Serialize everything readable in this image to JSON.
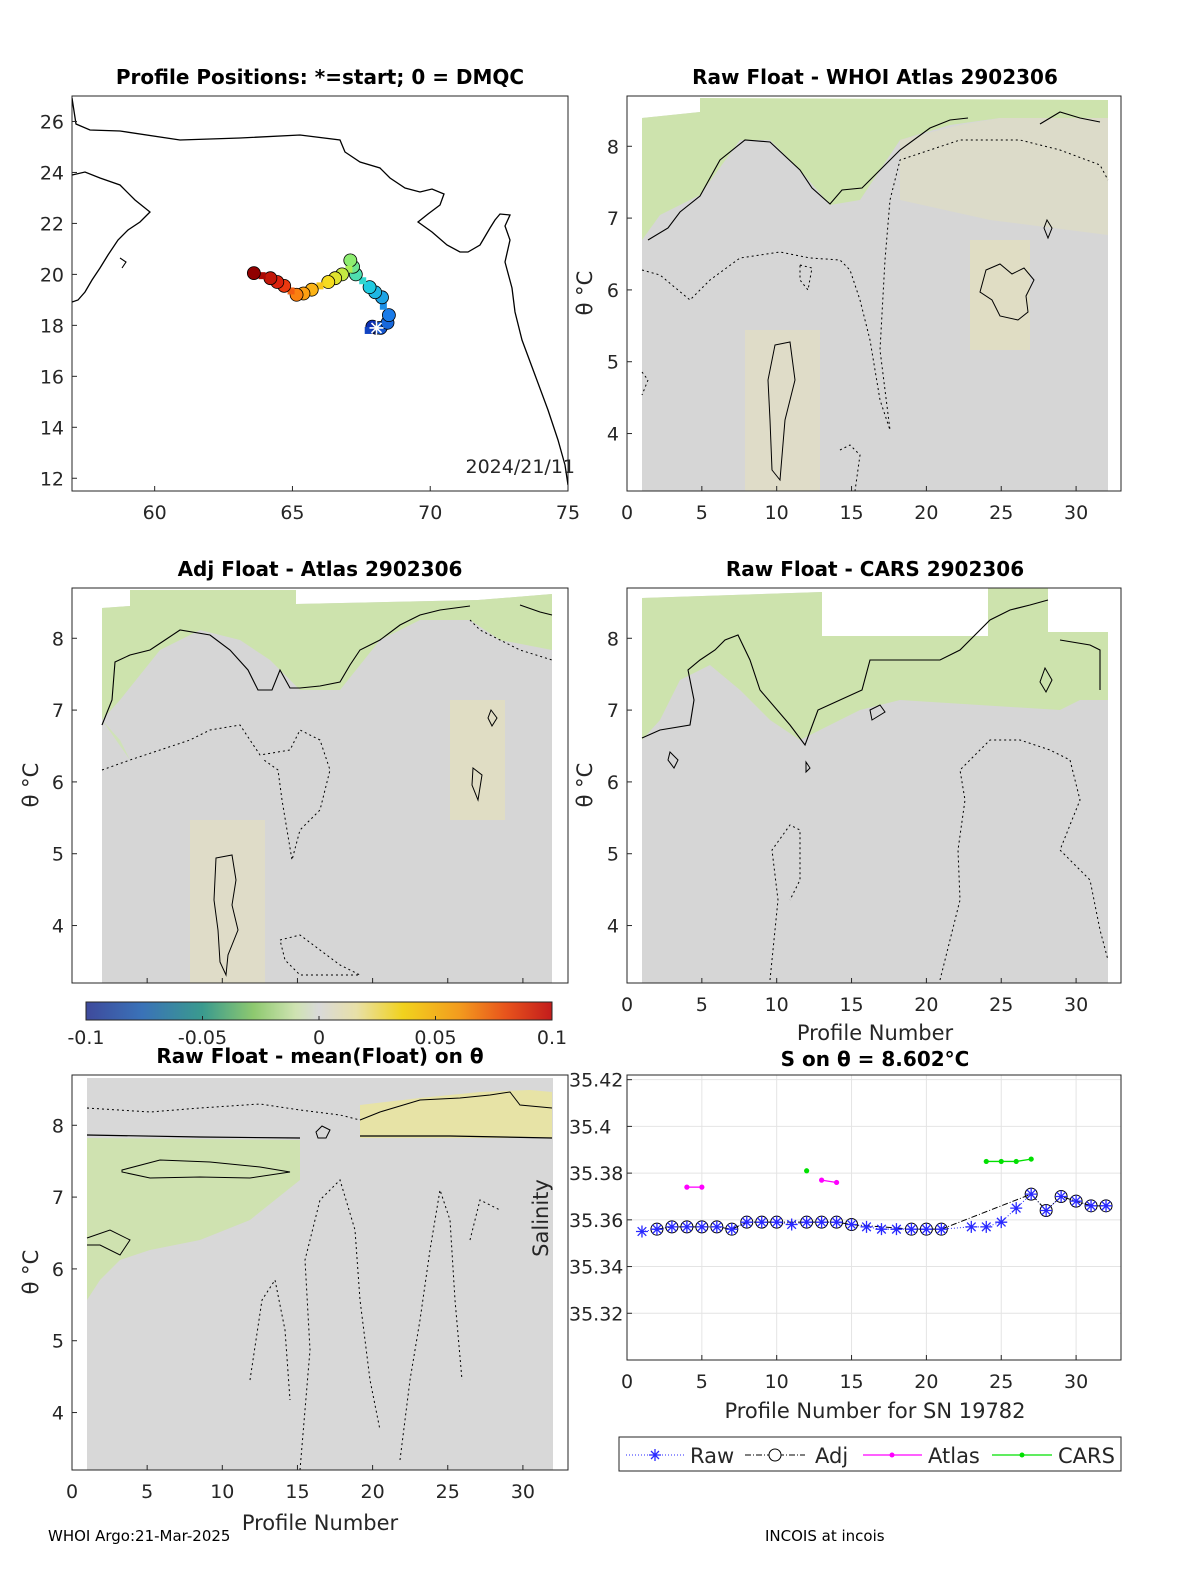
{
  "footer": {
    "left": "WHOI Argo:21-Mar-2025",
    "right": "INCOIS at incois"
  },
  "colorbar": {
    "ticks": [
      "-0.1",
      "-0.05",
      "0",
      "0.05",
      "0.1"
    ]
  },
  "chart_data": [
    {
      "type": "scatter",
      "title": "Profile Positions: *=start; 0 = DMQC",
      "annotation": "2024/21/11",
      "xlim": [
        57,
        75
      ],
      "ylim": [
        11.5,
        27
      ],
      "xticks": [
        "60",
        "65",
        "70",
        "75"
      ],
      "yticks": [
        "12",
        "14",
        "16",
        "18",
        "20",
        "22",
        "24",
        "26"
      ],
      "track": [
        {
          "lon": 68.05,
          "lat": 17.9
        },
        {
          "lon": 67.9,
          "lat": 17.95
        },
        {
          "lon": 67.75,
          "lat": 17.8
        },
        {
          "lon": 68.2,
          "lat": 17.9
        },
        {
          "lon": 68.45,
          "lat": 18.1
        },
        {
          "lon": 68.5,
          "lat": 18.4
        },
        {
          "lon": 68.3,
          "lat": 18.75
        },
        {
          "lon": 68.25,
          "lat": 19.1
        },
        {
          "lon": 68.0,
          "lat": 19.3
        },
        {
          "lon": 67.8,
          "lat": 19.5
        },
        {
          "lon": 67.55,
          "lat": 19.75
        },
        {
          "lon": 67.3,
          "lat": 20.0
        },
        {
          "lon": 67.2,
          "lat": 20.3
        },
        {
          "lon": 67.1,
          "lat": 20.55
        },
        {
          "lon": 67.05,
          "lat": 20.2
        },
        {
          "lon": 66.8,
          "lat": 20.0
        },
        {
          "lon": 66.55,
          "lat": 19.85
        },
        {
          "lon": 66.3,
          "lat": 19.7
        },
        {
          "lon": 66.0,
          "lat": 19.55
        },
        {
          "lon": 65.7,
          "lat": 19.4
        },
        {
          "lon": 65.4,
          "lat": 19.25
        },
        {
          "lon": 65.15,
          "lat": 19.2
        },
        {
          "lon": 64.95,
          "lat": 19.35
        },
        {
          "lon": 64.7,
          "lat": 19.55
        },
        {
          "lon": 64.45,
          "lat": 19.7
        },
        {
          "lon": 64.2,
          "lat": 19.85
        },
        {
          "lon": 63.9,
          "lat": 19.95
        },
        {
          "lon": 63.6,
          "lat": 20.05
        }
      ]
    },
    {
      "type": "heatmap",
      "title": "Raw Float - WHOI Atlas  2902306",
      "ylabel": "θ °C",
      "xlim": [
        0,
        33
      ],
      "ylim": [
        3.2,
        8.7
      ],
      "xticks": [
        "0",
        "5",
        "10",
        "15",
        "20",
        "25",
        "30"
      ],
      "yticks": [
        "4",
        "5",
        "6",
        "7",
        "8"
      ]
    },
    {
      "type": "heatmap",
      "title": "Adj Float - Atlas  2902306",
      "ylabel": "θ °C",
      "xlim": [
        0,
        33
      ],
      "ylim": [
        3.2,
        8.7
      ],
      "yticks": [
        "4",
        "5",
        "6",
        "7",
        "8"
      ]
    },
    {
      "type": "heatmap",
      "title": "Raw Float - CARS  2902306",
      "ylabel": "θ °C",
      "xlabel": "Profile Number",
      "xlim": [
        0,
        33
      ],
      "ylim": [
        3.2,
        8.7
      ],
      "xticks": [
        "0",
        "5",
        "10",
        "15",
        "20",
        "25",
        "30"
      ],
      "yticks": [
        "4",
        "5",
        "6",
        "7",
        "8"
      ]
    },
    {
      "type": "heatmap",
      "title": "Raw Float - mean(Float) on θ",
      "ylabel": "θ °C",
      "xlabel": "Profile Number",
      "xlim": [
        0,
        33
      ],
      "ylim": [
        3.2,
        8.7
      ],
      "xticks": [
        "0",
        "5",
        "10",
        "15",
        "20",
        "25",
        "30"
      ],
      "yticks": [
        "4",
        "5",
        "6",
        "7",
        "8"
      ]
    },
    {
      "type": "line",
      "title": "S on θ = 8.602°C",
      "ylabel": "Salinity",
      "xlabel": "Profile Number for SN 19782",
      "xlim": [
        0,
        33
      ],
      "ylim": [
        35.3,
        35.422
      ],
      "xticks": [
        "0",
        "5",
        "10",
        "15",
        "20",
        "25",
        "30"
      ],
      "yticks": [
        "35.32",
        "35.34",
        "35.36",
        "35.38",
        "35.4",
        "35.42"
      ],
      "legend": [
        "Raw",
        "Adj",
        "Atlas",
        "CARS"
      ],
      "series": [
        {
          "name": "Raw",
          "x": [
            1,
            2,
            3,
            4,
            5,
            6,
            7,
            8,
            9,
            10,
            11,
            12,
            13,
            14,
            15,
            16,
            17,
            18,
            19,
            20,
            21,
            23,
            24,
            25,
            26,
            27,
            28,
            29,
            30,
            31,
            32
          ],
          "y": [
            35.355,
            35.356,
            35.357,
            35.357,
            35.357,
            35.357,
            35.356,
            35.359,
            35.359,
            35.359,
            35.358,
            35.359,
            35.359,
            35.359,
            35.358,
            35.357,
            35.356,
            35.356,
            35.356,
            35.356,
            35.356,
            35.357,
            35.357,
            35.359,
            35.365,
            35.371,
            35.364,
            35.37,
            35.368,
            35.366,
            35.366
          ]
        },
        {
          "name": "Adj",
          "x": [
            2,
            3,
            4,
            5,
            6,
            7,
            8,
            9,
            10,
            12,
            13,
            14,
            15,
            19,
            20,
            21,
            27,
            28,
            29,
            30,
            31,
            32
          ],
          "y": [
            35.356,
            35.357,
            35.357,
            35.357,
            35.357,
            35.356,
            35.359,
            35.359,
            35.359,
            35.359,
            35.359,
            35.359,
            35.358,
            35.356,
            35.356,
            35.356,
            35.371,
            35.364,
            35.37,
            35.368,
            35.366,
            35.366
          ]
        },
        {
          "name": "Atlas",
          "segments": [
            [
              [
                4,
                35.374
              ],
              [
                5,
                35.374
              ]
            ],
            [
              [
                13,
                35.377
              ],
              [
                14,
                35.376
              ]
            ]
          ]
        },
        {
          "name": "CARS",
          "segments": [
            [
              [
                12,
                35.381
              ]
            ],
            [
              [
                24,
                35.385
              ],
              [
                25,
                35.385
              ],
              [
                26,
                35.385
              ],
              [
                27,
                35.386
              ]
            ]
          ]
        }
      ]
    }
  ]
}
